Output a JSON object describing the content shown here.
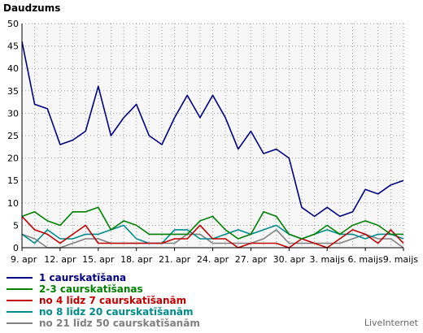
{
  "chart_data": {
    "type": "line",
    "title": "Daudzums",
    "ylim": [
      0,
      50
    ],
    "y_ticks": [
      "0",
      "5",
      "10",
      "15",
      "20",
      "25",
      "30",
      "35",
      "40",
      "45",
      "50"
    ],
    "x": [
      "9. apr",
      "10. apr",
      "11. apr",
      "12. apr",
      "13. apr",
      "14. apr",
      "15. apr",
      "16. apr",
      "17. apr",
      "18. apr",
      "19. apr",
      "20. apr",
      "21. apr",
      "22. apr",
      "23. apr",
      "24. apr",
      "25. apr",
      "26. apr",
      "27. apr",
      "28. apr",
      "29. apr",
      "30. apr",
      "1. maijs",
      "2. maijs",
      "3. maijs",
      "4. maijs",
      "5. maijs",
      "6. maijs",
      "7. maijs",
      "8. maijs",
      "9. maijs"
    ],
    "x_tick_labels": [
      "9. apr",
      "12. apr",
      "15. apr",
      "18. apr",
      "21. apr",
      "24. apr",
      "27. apr",
      "30. apr",
      "3. maijs",
      "6. maijs",
      "9. maijs"
    ],
    "grid": true,
    "legend_position": "bottom",
    "series": [
      {
        "name": "1 caurskatīšana",
        "color": "#000080",
        "values": [
          46,
          32,
          31,
          23,
          24,
          26,
          36,
          25,
          29,
          32,
          25,
          23,
          29,
          34,
          29,
          34,
          29,
          22,
          26,
          21,
          22,
          20,
          9,
          7,
          9,
          7,
          8,
          13,
          12,
          14,
          15
        ]
      },
      {
        "name": "2-3 caurskatīšanas",
        "color": "#008000",
        "values": [
          7,
          8,
          6,
          5,
          8,
          8,
          9,
          4,
          6,
          5,
          3,
          3,
          3,
          3,
          6,
          7,
          4,
          2,
          3,
          8,
          7,
          3,
          2,
          3,
          5,
          3,
          5,
          6,
          5,
          3,
          3
        ]
      },
      {
        "name": "no 4 līdz 7 caurskatīšanām",
        "color": "#c00000",
        "values": [
          7,
          4,
          3,
          1,
          3,
          5,
          1,
          1,
          1,
          1,
          1,
          1,
          2,
          2,
          5,
          2,
          2,
          0,
          1,
          1,
          1,
          0,
          2,
          1,
          0,
          2,
          4,
          3,
          1,
          4,
          1
        ]
      },
      {
        "name": "no 8 līdz 20 caurskatīšanām",
        "color": "#008b8b",
        "values": [
          3,
          1,
          4,
          2,
          2,
          3,
          3,
          4,
          5,
          2,
          1,
          1,
          4,
          4,
          2,
          2,
          3,
          4,
          3,
          4,
          5,
          3,
          2,
          3,
          4,
          3,
          3,
          2,
          3,
          3,
          2
        ]
      },
      {
        "name": "no 21 līdz 50 caurskatīšanām",
        "color": "#808080",
        "values": [
          3,
          2,
          0,
          0,
          1,
          2,
          2,
          1,
          1,
          1,
          1,
          1,
          1,
          3,
          3,
          1,
          1,
          1,
          1,
          2,
          4,
          1,
          1,
          1,
          1,
          1,
          2,
          3,
          2,
          2,
          0
        ]
      }
    ]
  },
  "brand": "LiveInternet"
}
